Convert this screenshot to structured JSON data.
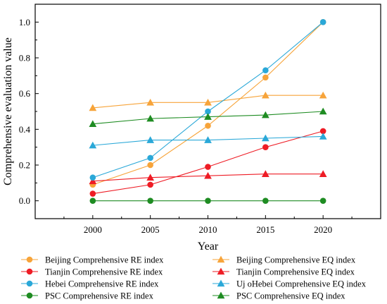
{
  "chart_data": {
    "type": "line",
    "title": "",
    "xlabel": "Year",
    "ylabel": "Comprehensive evaluation value",
    "x": [
      2000,
      2005,
      2010,
      2015,
      2020
    ],
    "xticks": [
      "2000",
      "2005",
      "2010",
      "2015",
      "2020"
    ],
    "xlim": [
      1995,
      2025
    ],
    "ylim": [
      -0.1,
      1.1
    ],
    "yticks": [
      "0.0",
      "0.2",
      "0.4",
      "0.6",
      "0.8",
      "1.0"
    ],
    "grid": false,
    "legend_position": "bottom",
    "series": [
      {
        "name": "Beijing Comprehensive RE index",
        "marker": "circle",
        "color": "#f7a43a",
        "values": [
          0.09,
          0.2,
          0.42,
          0.69,
          1.0
        ]
      },
      {
        "name": "Beijing Comprehensive EQ index",
        "marker": "triangle",
        "color": "#f7a43a",
        "values": [
          0.52,
          0.55,
          0.55,
          0.59,
          0.59
        ]
      },
      {
        "name": "Tianjin Comprehensive RE index",
        "marker": "circle",
        "color": "#ee1c25",
        "values": [
          0.04,
          0.09,
          0.19,
          0.3,
          0.39
        ]
      },
      {
        "name": "Tianjin Comprehensive EQ index",
        "marker": "triangle",
        "color": "#ee1c25",
        "values": [
          0.11,
          0.13,
          0.14,
          0.15,
          0.15
        ]
      },
      {
        "name": "Hebei Comprehensive RE index",
        "marker": "circle",
        "color": "#2aa8d8",
        "values": [
          0.13,
          0.24,
          0.5,
          0.73,
          1.0
        ]
      },
      {
        "name": "Uj oHebei Comprehensive EQ index",
        "marker": "triangle",
        "color": "#2aa8d8",
        "values": [
          0.31,
          0.34,
          0.34,
          0.35,
          0.36
        ]
      },
      {
        "name": "PSC Comprehensive RE index",
        "marker": "circle",
        "color": "#1e8c22",
        "values": [
          0.0,
          0.0,
          0.0,
          0.0,
          0.0
        ]
      },
      {
        "name": "PSC Comprehensive EQ index",
        "marker": "triangle",
        "color": "#1e8c22",
        "values": [
          0.43,
          0.46,
          0.47,
          0.48,
          0.5
        ]
      }
    ]
  }
}
